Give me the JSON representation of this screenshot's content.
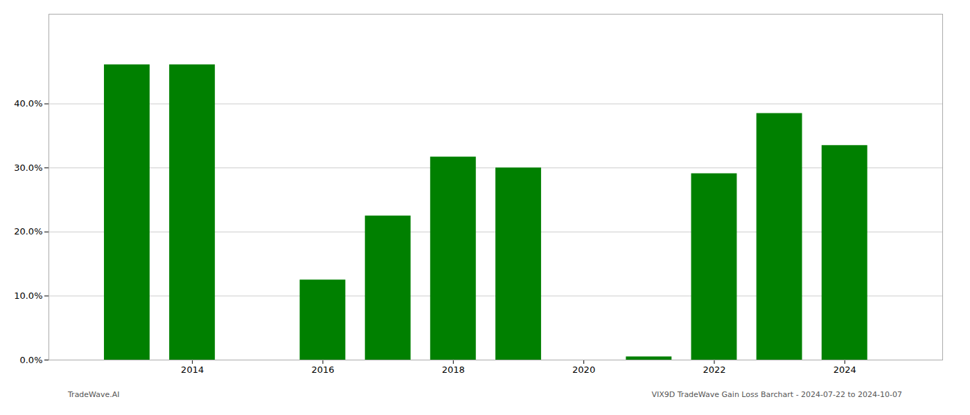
{
  "chart_data": {
    "type": "bar",
    "x": [
      2013,
      2014,
      2016,
      2017,
      2018,
      2019,
      2021,
      2022,
      2023,
      2024
    ],
    "values": [
      0.461,
      0.461,
      0.125,
      0.225,
      0.317,
      0.3,
      0.005,
      0.291,
      0.385,
      0.335
    ],
    "color": "#008000",
    "xlim": [
      2011.8,
      2025.5
    ],
    "xticks": [
      2014,
      2016,
      2018,
      2020,
      2022,
      2024
    ],
    "ylim": [
      0,
      0.54
    ],
    "yticks": [
      {
        "value": 0.0,
        "label": "0.0%"
      },
      {
        "value": 0.1,
        "label": "10.0%"
      },
      {
        "value": 0.2,
        "label": "20.0%"
      },
      {
        "value": 0.3,
        "label": "30.0%"
      },
      {
        "value": 0.4,
        "label": "40.0%"
      }
    ],
    "grid": true,
    "annotations": [
      "TradeWave.AI",
      "VIX9D TradeWave Gain Loss Barchart - 2024-07-22 to 2024-10-07"
    ]
  }
}
